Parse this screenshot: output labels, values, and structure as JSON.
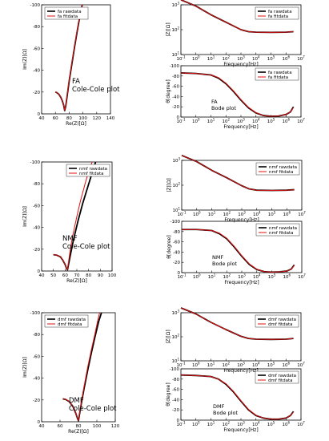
{
  "colors": {
    "rawdata": "#000000",
    "fitdata": "#e01010",
    "frame": "#000000"
  },
  "chart_data": [
    {
      "type": "line",
      "kind": "nyquist",
      "annotation": [
        "FA",
        "Cole-Cole plot"
      ],
      "xlabel": "Re(Z)[Ω]",
      "ylabel": "Im(Z)[Ω]",
      "xlim": [
        40,
        140
      ],
      "ylim": [
        0,
        -100
      ],
      "xticks": [
        "40",
        "60",
        "80",
        "100",
        "120",
        "140"
      ],
      "yticks": [
        "0",
        "-20",
        "-40",
        "-60",
        "-80",
        "-100"
      ],
      "legend_position": "top-left",
      "series": [
        {
          "name": "fa rawdata",
          "color_role": "rawdata",
          "x": [
            60,
            62,
            65,
            68,
            70,
            72,
            73.5,
            75,
            77,
            80,
            84,
            88,
            92,
            96,
            99
          ],
          "y": [
            -20,
            -19.5,
            -18,
            -15,
            -12,
            -8,
            -3,
            -7,
            -16,
            -30,
            -46,
            -62,
            -77,
            -91,
            -100
          ]
        },
        {
          "name": "fa fitdata",
          "color_role": "fitdata",
          "x": [
            60,
            62,
            65,
            68,
            70,
            72,
            73.5,
            75,
            77,
            80,
            84,
            88,
            92,
            96,
            99
          ],
          "y": [
            -20,
            -19.6,
            -18.1,
            -15.1,
            -12.1,
            -8.1,
            -3.2,
            -7.5,
            -17,
            -31,
            -47,
            -63,
            -78,
            -92,
            -100
          ]
        }
      ]
    },
    {
      "type": "line",
      "kind": "bode-magnitude",
      "ylabel": "|Z|[Ω]",
      "xlabel": "Frequency[Hz]",
      "xlim": [
        -1,
        7
      ],
      "ylim": [
        1,
        3
      ],
      "xtick_powers": [
        -1,
        0,
        1,
        2,
        3,
        4,
        5,
        6,
        7
      ],
      "ytick_powers": [
        1,
        2,
        3
      ],
      "legend_position": "top-right",
      "series": [
        {
          "name": "fa rawdata",
          "color_role": "rawdata",
          "x": [
            -1,
            0,
            1,
            2,
            3,
            3.5,
            4,
            5,
            6,
            6.5
          ],
          "y": [
            3.2,
            2.95,
            2.6,
            2.3,
            2.0,
            1.92,
            1.9,
            1.89,
            1.9,
            1.92
          ]
        },
        {
          "name": "fa fitdata",
          "color_role": "fitdata",
          "x": [
            -1,
            0,
            1,
            2,
            3,
            3.5,
            4,
            5,
            6,
            6.5
          ],
          "y": [
            3.2,
            2.95,
            2.6,
            2.3,
            2.0,
            1.92,
            1.9,
            1.89,
            1.9,
            1.92
          ]
        }
      ]
    },
    {
      "type": "line",
      "kind": "bode-phase",
      "annotation": [
        "FA",
        "Bode plot"
      ],
      "ylabel": "θ[degree]",
      "xlabel": "Frequency[Hz]",
      "xlim": [
        -1,
        7
      ],
      "ylim": [
        0,
        -100
      ],
      "xtick_powers": [
        -1,
        0,
        1,
        2,
        3,
        4,
        5,
        6,
        7
      ],
      "yticks": [
        "0",
        "-20",
        "-40",
        "-60",
        "-80",
        "-100"
      ],
      "legend_position": "top-right",
      "series": [
        {
          "name": "fa rawdata",
          "color_role": "rawdata",
          "x": [
            -1,
            0,
            1,
            1.5,
            2,
            2.5,
            3,
            3.5,
            4,
            4.5,
            5,
            5.5,
            6,
            6.3,
            6.5
          ],
          "y": [
            -86,
            -85,
            -82,
            -76,
            -65,
            -50,
            -33,
            -18,
            -8,
            -3,
            -1.5,
            -2,
            -5,
            -10,
            -20
          ]
        },
        {
          "name": "fa fitdata",
          "color_role": "fitdata",
          "x": [
            -1,
            0,
            1,
            1.5,
            2,
            2.5,
            3,
            3.5,
            4,
            4.5,
            5,
            5.5,
            6,
            6.3,
            6.5
          ],
          "y": [
            -86,
            -85,
            -82,
            -77,
            -66,
            -51,
            -34,
            -19,
            -8.5,
            -3,
            -1.5,
            -2,
            -5,
            -10,
            -19
          ]
        }
      ]
    },
    {
      "type": "line",
      "kind": "nyquist",
      "annotation": [
        "NMF",
        "Cole-Cole plot"
      ],
      "xlabel": "Re(Z)[Ω]",
      "ylabel": "Im(Z)[Ω]",
      "xlim": [
        40,
        100
      ],
      "ylim": [
        0,
        -100
      ],
      "xticks": [
        "40",
        "50",
        "60",
        "70",
        "80",
        "90",
        "100"
      ],
      "yticks": [
        "0",
        "-20",
        "-40",
        "-60",
        "-80",
        "-100"
      ],
      "legend_position": "top-right",
      "series": [
        {
          "name": "nmf rawdata",
          "color_role": "rawdata",
          "x": [
            50,
            53,
            56,
            58,
            60,
            61,
            62,
            64,
            67,
            71,
            75,
            79,
            83,
            86
          ],
          "y": [
            -15,
            -14.5,
            -13,
            -10,
            -6,
            -3,
            -1,
            -12,
            -28,
            -46,
            -62,
            -76,
            -90,
            -100
          ]
        },
        {
          "name": "nmf fitdata",
          "color_role": "fitdata",
          "x": [
            50,
            53,
            56,
            58,
            60,
            61,
            62,
            63.5,
            66,
            70,
            73,
            77,
            80,
            83
          ],
          "y": [
            -15,
            -14.6,
            -13.1,
            -10.1,
            -6.1,
            -3.1,
            -1.2,
            -13,
            -30,
            -50,
            -64,
            -80,
            -91,
            -100
          ]
        }
      ]
    },
    {
      "type": "line",
      "kind": "bode-magnitude",
      "ylabel": "|Z|[Ω]",
      "xlabel": "Frequency[Hz]",
      "xlim": [
        -1,
        7
      ],
      "ylim": [
        1,
        3
      ],
      "xtick_powers": [
        -1,
        0,
        1,
        2,
        3,
        4,
        5,
        6,
        7
      ],
      "ytick_powers": [
        1,
        2,
        3
      ],
      "legend_position": "top-right",
      "series": [
        {
          "name": "nmf rawdata",
          "color_role": "rawdata",
          "x": [
            -1,
            0,
            1,
            2,
            3,
            3.5,
            4,
            5,
            6,
            6.5
          ],
          "y": [
            3.2,
            2.95,
            2.6,
            2.3,
            1.98,
            1.85,
            1.8,
            1.79,
            1.8,
            1.82
          ]
        },
        {
          "name": "nmf fitdata",
          "color_role": "fitdata",
          "x": [
            -1,
            0,
            1,
            2,
            3,
            3.5,
            4,
            5,
            6,
            6.5
          ],
          "y": [
            3.2,
            2.95,
            2.6,
            2.3,
            1.98,
            1.85,
            1.8,
            1.79,
            1.8,
            1.82
          ]
        }
      ]
    },
    {
      "type": "line",
      "kind": "bode-phase",
      "annotation": [
        "NMF",
        "Bode plot"
      ],
      "ylabel": "θ[degree]",
      "xlabel": "Frequency[Hz]",
      "xlim": [
        -1,
        7
      ],
      "ylim": [
        0,
        -100
      ],
      "xtick_powers": [
        -1,
        0,
        1,
        2,
        3,
        4,
        5,
        6,
        7
      ],
      "yticks": [
        "0",
        "-20",
        "-40",
        "-60",
        "-80",
        "-100"
      ],
      "legend_position": "top-right",
      "series": [
        {
          "name": "nmf rawdata",
          "color_role": "rawdata",
          "x": [
            -1,
            0,
            1,
            1.5,
            2,
            2.5,
            3,
            3.5,
            4,
            4.5,
            5,
            5.5,
            6,
            6.3,
            6.5
          ],
          "y": [
            -84,
            -84,
            -82,
            -76,
            -66,
            -50,
            -32,
            -16,
            -6,
            -2,
            -1,
            -1.5,
            -3,
            -7,
            -15
          ]
        },
        {
          "name": "nmf fitdata",
          "color_role": "fitdata",
          "x": [
            -1,
            0,
            1,
            1.5,
            2,
            2.5,
            3,
            3.5,
            4,
            4.5,
            5,
            5.5,
            6,
            6.3,
            6.5
          ],
          "y": [
            -84,
            -84,
            -82,
            -77,
            -67,
            -51,
            -33,
            -17,
            -6.5,
            -2,
            -1,
            -1.5,
            -3,
            -7,
            -14
          ]
        }
      ]
    },
    {
      "type": "line",
      "kind": "nyquist",
      "annotation": [
        "DMF",
        "Cole-Cole plot"
      ],
      "xlabel": "Re(Z)[Ω]",
      "ylabel": "Im(Z)[Ω]",
      "xlim": [
        40,
        120
      ],
      "ylim": [
        0,
        -100
      ],
      "xticks": [
        "40",
        "60",
        "80",
        "100",
        "120"
      ],
      "yticks": [
        "0",
        "-20",
        "-40",
        "-60",
        "-80",
        "-100"
      ],
      "legend_position": "top-left",
      "series": [
        {
          "name": "dmf rawdata",
          "color_role": "rawdata",
          "x": [
            63,
            66,
            70,
            74,
            77,
            79,
            80,
            81,
            83,
            86,
            90,
            94,
            98,
            102,
            105
          ],
          "y": [
            -21,
            -20.5,
            -18.5,
            -14,
            -8,
            -3,
            -1,
            -6,
            -16,
            -30,
            -47,
            -63,
            -78,
            -92,
            -100
          ]
        },
        {
          "name": "dmf fitdata",
          "color_role": "fitdata",
          "x": [
            63,
            66,
            70,
            74,
            77,
            79,
            80,
            81,
            83,
            86,
            90,
            94,
            98,
            101,
            103
          ],
          "y": [
            -21,
            -20.6,
            -18.6,
            -14.1,
            -8.1,
            -3.1,
            -1.2,
            -6.5,
            -17,
            -32,
            -50,
            -66,
            -81,
            -93,
            -100
          ]
        }
      ]
    },
    {
      "type": "line",
      "kind": "bode-magnitude",
      "ylabel": "|Z|[Ω]",
      "xlabel": "Frequency[Hz]",
      "xlim": [
        -1,
        7
      ],
      "ylim": [
        1,
        3
      ],
      "xtick_powers": [
        -1,
        0,
        1,
        2,
        3,
        4,
        5,
        6,
        7
      ],
      "ytick_powers": [
        1,
        2,
        3
      ],
      "legend_position": "top-right",
      "series": [
        {
          "name": "dmf rawdata",
          "color_role": "rawdata",
          "x": [
            -1,
            0,
            1,
            2,
            3,
            3.5,
            4,
            5,
            6,
            6.5
          ],
          "y": [
            3.2,
            2.95,
            2.6,
            2.3,
            2.02,
            1.93,
            1.9,
            1.89,
            1.9,
            1.93
          ]
        },
        {
          "name": "dmf fitdata",
          "color_role": "fitdata",
          "x": [
            -1,
            0,
            1,
            2,
            3,
            3.5,
            4,
            5,
            6,
            6.5
          ],
          "y": [
            3.2,
            2.95,
            2.6,
            2.3,
            2.02,
            1.93,
            1.9,
            1.89,
            1.9,
            1.93
          ]
        }
      ]
    },
    {
      "type": "line",
      "kind": "bode-phase",
      "annotation": [
        "DMF",
        "Bode plot"
      ],
      "ylabel": "θ[degree]",
      "xlabel": "Frequency[Hz]",
      "xlim": [
        -1,
        7
      ],
      "ylim": [
        0,
        -100
      ],
      "xtick_powers": [
        -1,
        0,
        1,
        2,
        3,
        4,
        5,
        6,
        7
      ],
      "yticks": [
        "0",
        "-20",
        "-40",
        "-60",
        "-80",
        "-100"
      ],
      "legend_position": "top-right",
      "series": [
        {
          "name": "dmf rawdata",
          "color_role": "rawdata",
          "x": [
            -1,
            0,
            1,
            1.5,
            2,
            2.5,
            3,
            3.5,
            4,
            4.5,
            5,
            5.5,
            6,
            6.3,
            6.5
          ],
          "y": [
            -88,
            -87,
            -85,
            -80,
            -70,
            -55,
            -37,
            -20,
            -9,
            -4,
            -2,
            -2,
            -4,
            -9,
            -17
          ]
        },
        {
          "name": "dmf fitdata",
          "color_role": "fitdata",
          "x": [
            -1,
            0,
            1,
            1.5,
            2,
            2.5,
            3,
            3.5,
            4,
            4.5,
            5,
            5.5,
            6,
            6.3,
            6.5
          ],
          "y": [
            -88,
            -87,
            -85,
            -80,
            -71,
            -56,
            -38,
            -21,
            -9.5,
            -4,
            -2,
            -2,
            -4,
            -9,
            -16
          ]
        }
      ]
    }
  ]
}
